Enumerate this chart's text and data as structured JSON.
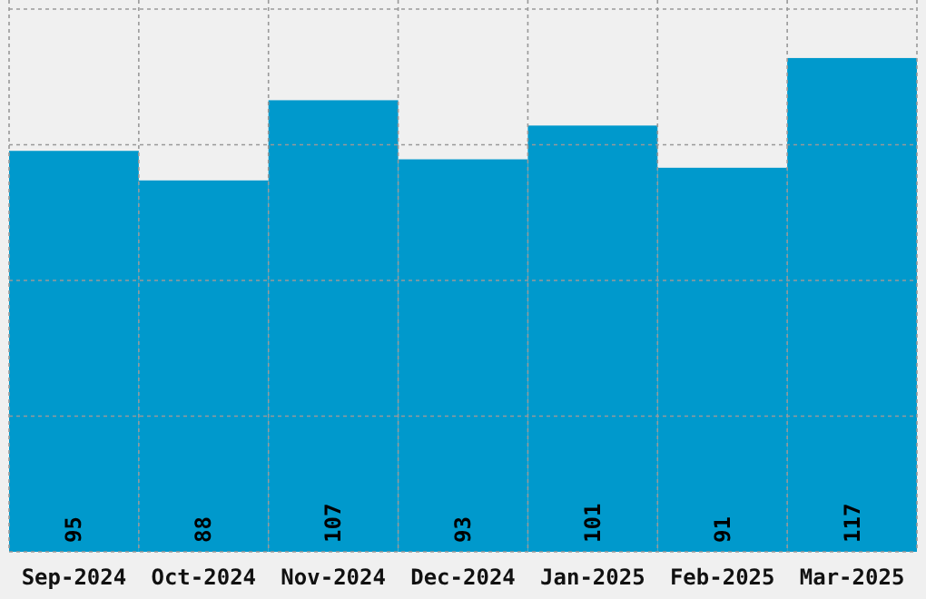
{
  "chart_data": {
    "type": "bar",
    "categories": [
      "Sep-2024",
      "Oct-2024",
      "Nov-2024",
      "Dec-2024",
      "Jan-2025",
      "Feb-2025",
      "Mar-2025"
    ],
    "values": [
      95,
      88,
      107,
      93,
      101,
      91,
      117
    ],
    "color": "#0099cc",
    "data_labels": true,
    "grid": true,
    "tick_labels": "x",
    "ylim": [
      0,
      128.6
    ],
    "yticks": [
      {
        "value": 0,
        "label": null
      },
      {
        "value": 32.15,
        "label": null
      },
      {
        "value": 64.3,
        "label": null
      },
      {
        "value": 96.45,
        "label": null
      },
      {
        "value": 128.6,
        "label": null
      }
    ]
  }
}
